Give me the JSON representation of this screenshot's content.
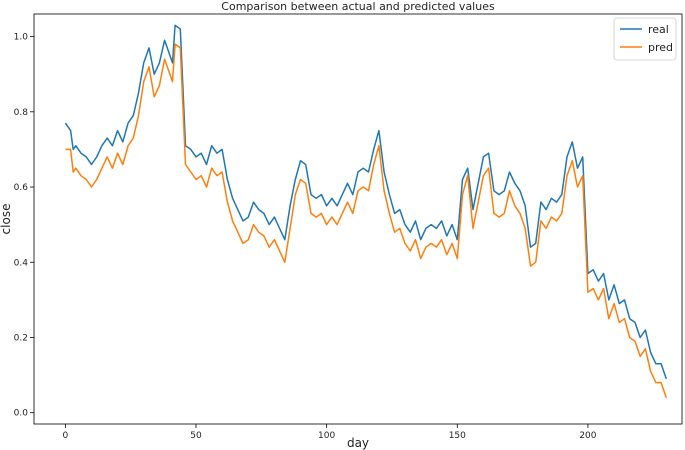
{
  "chart_data": {
    "type": "line",
    "title": "Comparison between actual and predicted values",
    "xlabel": "day",
    "ylabel": "close",
    "xlim": [
      -12,
      236
    ],
    "ylim": [
      -0.03,
      1.06
    ],
    "xticks": [
      0,
      50,
      100,
      150,
      200
    ],
    "yticks": [
      0.0,
      0.2,
      0.4,
      0.6,
      0.8,
      1.0
    ],
    "ytick_labels": [
      "0.0",
      "0.2",
      "0.4",
      "0.6",
      "0.8",
      "1.0"
    ],
    "legend_position": "top-right",
    "grid": false,
    "series": [
      {
        "name": "real",
        "color": "#1f77b4",
        "x": [
          0,
          2,
          3,
          4,
          6,
          8,
          10,
          12,
          14,
          16,
          18,
          20,
          22,
          24,
          26,
          28,
          30,
          31,
          32,
          34,
          36,
          38,
          40,
          41,
          42,
          44,
          46,
          48,
          50,
          52,
          54,
          56,
          58,
          60,
          62,
          64,
          66,
          68,
          70,
          72,
          74,
          76,
          78,
          80,
          82,
          84,
          86,
          88,
          90,
          92,
          94,
          96,
          98,
          100,
          102,
          104,
          106,
          108,
          110,
          112,
          114,
          116,
          118,
          120,
          122,
          124,
          126,
          128,
          130,
          132,
          134,
          136,
          138,
          140,
          142,
          144,
          146,
          148,
          150,
          152,
          154,
          156,
          158,
          160,
          162,
          164,
          166,
          168,
          170,
          172,
          174,
          176,
          178,
          180,
          182,
          184,
          186,
          188,
          190,
          192,
          194,
          196,
          198,
          200,
          202,
          204,
          206,
          208,
          210,
          212,
          214,
          216,
          218,
          220,
          222,
          224,
          226,
          228,
          230
        ],
        "values": [
          0.77,
          0.75,
          0.7,
          0.71,
          0.69,
          0.68,
          0.66,
          0.68,
          0.71,
          0.73,
          0.71,
          0.75,
          0.72,
          0.77,
          0.79,
          0.85,
          0.93,
          0.95,
          0.97,
          0.9,
          0.93,
          0.99,
          0.95,
          0.93,
          1.03,
          1.02,
          0.71,
          0.7,
          0.68,
          0.69,
          0.66,
          0.71,
          0.69,
          0.7,
          0.62,
          0.57,
          0.54,
          0.51,
          0.52,
          0.56,
          0.54,
          0.53,
          0.5,
          0.52,
          0.49,
          0.46,
          0.55,
          0.62,
          0.67,
          0.66,
          0.58,
          0.57,
          0.58,
          0.55,
          0.57,
          0.55,
          0.58,
          0.61,
          0.58,
          0.64,
          0.65,
          0.64,
          0.7,
          0.75,
          0.64,
          0.58,
          0.53,
          0.54,
          0.5,
          0.48,
          0.51,
          0.46,
          0.49,
          0.5,
          0.49,
          0.51,
          0.47,
          0.5,
          0.46,
          0.62,
          0.65,
          0.54,
          0.61,
          0.68,
          0.69,
          0.59,
          0.58,
          0.59,
          0.64,
          0.61,
          0.59,
          0.55,
          0.44,
          0.45,
          0.56,
          0.54,
          0.57,
          0.56,
          0.58,
          0.68,
          0.72,
          0.65,
          0.68,
          0.37,
          0.38,
          0.35,
          0.37,
          0.3,
          0.34,
          0.29,
          0.3,
          0.25,
          0.24,
          0.2,
          0.22,
          0.16,
          0.13,
          0.13,
          0.09
        ]
      },
      {
        "name": "pred",
        "color": "#ff7f0e",
        "x": [
          0,
          2,
          3,
          4,
          6,
          8,
          10,
          12,
          14,
          16,
          18,
          20,
          22,
          24,
          26,
          28,
          30,
          31,
          32,
          34,
          36,
          38,
          40,
          41,
          42,
          44,
          46,
          48,
          50,
          52,
          54,
          56,
          58,
          60,
          62,
          64,
          66,
          68,
          70,
          72,
          74,
          76,
          78,
          80,
          82,
          84,
          86,
          88,
          90,
          92,
          94,
          96,
          98,
          100,
          102,
          104,
          106,
          108,
          110,
          112,
          114,
          116,
          118,
          120,
          122,
          124,
          126,
          128,
          130,
          132,
          134,
          136,
          138,
          140,
          142,
          144,
          146,
          148,
          150,
          152,
          154,
          156,
          158,
          160,
          162,
          164,
          166,
          168,
          170,
          172,
          174,
          176,
          178,
          180,
          182,
          184,
          186,
          188,
          190,
          192,
          194,
          196,
          198,
          200,
          202,
          204,
          206,
          208,
          210,
          212,
          214,
          216,
          218,
          220,
          222,
          224,
          226,
          228,
          230
        ],
        "values": [
          0.7,
          0.7,
          0.64,
          0.65,
          0.63,
          0.62,
          0.6,
          0.62,
          0.65,
          0.68,
          0.65,
          0.69,
          0.66,
          0.71,
          0.73,
          0.79,
          0.88,
          0.9,
          0.92,
          0.84,
          0.87,
          0.94,
          0.9,
          0.88,
          0.98,
          0.97,
          0.66,
          0.64,
          0.62,
          0.63,
          0.6,
          0.65,
          0.63,
          0.64,
          0.56,
          0.51,
          0.48,
          0.45,
          0.46,
          0.5,
          0.48,
          0.47,
          0.44,
          0.46,
          0.43,
          0.4,
          0.49,
          0.58,
          0.62,
          0.61,
          0.53,
          0.52,
          0.53,
          0.5,
          0.52,
          0.5,
          0.53,
          0.56,
          0.53,
          0.59,
          0.6,
          0.59,
          0.66,
          0.71,
          0.59,
          0.53,
          0.48,
          0.49,
          0.45,
          0.43,
          0.46,
          0.41,
          0.44,
          0.45,
          0.44,
          0.46,
          0.42,
          0.45,
          0.41,
          0.58,
          0.63,
          0.49,
          0.56,
          0.63,
          0.65,
          0.53,
          0.52,
          0.53,
          0.59,
          0.55,
          0.53,
          0.49,
          0.39,
          0.4,
          0.51,
          0.49,
          0.52,
          0.51,
          0.53,
          0.63,
          0.67,
          0.6,
          0.63,
          0.32,
          0.33,
          0.3,
          0.33,
          0.25,
          0.29,
          0.24,
          0.25,
          0.2,
          0.19,
          0.15,
          0.17,
          0.11,
          0.08,
          0.08,
          0.04
        ]
      }
    ]
  }
}
